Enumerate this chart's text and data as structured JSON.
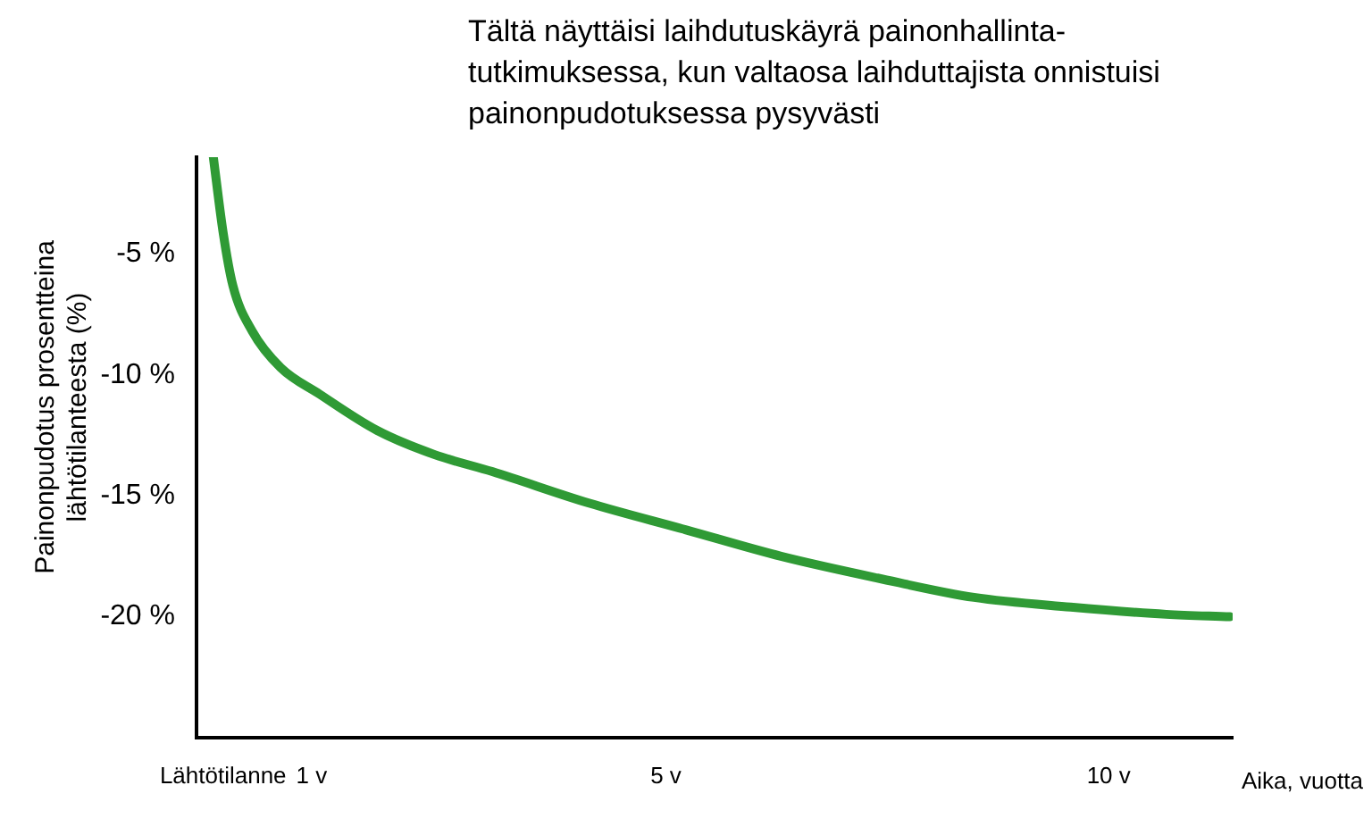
{
  "chart_data": {
    "type": "line",
    "title": "Tältä näyttäisi laihdutuskäyrä painonhallinta-tutkimuksessa, kun valtaosa laihduttajista onnistuisi painonpudotuksessa pysyvästi",
    "ylabel": "Painonpudotus prosentteina lähtötilanteesta (%)",
    "xlabel": "Aika, vuotta",
    "xlim": [
      -0.3,
      11.4
    ],
    "xticks": [
      {
        "value": 0,
        "label": "Lähtötilanne"
      },
      {
        "value": 1,
        "label": "1 v"
      },
      {
        "value": 5,
        "label": "5 v"
      },
      {
        "value": 10,
        "label": "10 v"
      }
    ],
    "ylim": [
      -25,
      -1
    ],
    "yticks": [
      {
        "value": -5,
        "label": "-5 %"
      },
      {
        "value": -10,
        "label": "-10 %"
      },
      {
        "value": -15,
        "label": "-15 %"
      },
      {
        "value": -20,
        "label": "-20 %"
      }
    ],
    "grid": false,
    "legend": false,
    "marker": "none",
    "line_style": "solid",
    "series": [
      {
        "color": "#2f9a35",
        "x": [
          -0.11,
          0,
          0.11,
          0.33,
          0.65,
          1.09,
          1.74,
          2.39,
          3.04,
          4.13,
          5.22,
          6.3,
          7.39,
          8.48,
          9.57,
          10.65,
          11.37
        ],
        "values": [
          -1,
          -4.1,
          -6.3,
          -8.2,
          -9.7,
          -10.8,
          -12.3,
          -13.3,
          -14.0,
          -15.3,
          -16.4,
          -17.5,
          -18.4,
          -19.2,
          -19.6,
          -19.9,
          -20.0
        ]
      }
    ]
  }
}
